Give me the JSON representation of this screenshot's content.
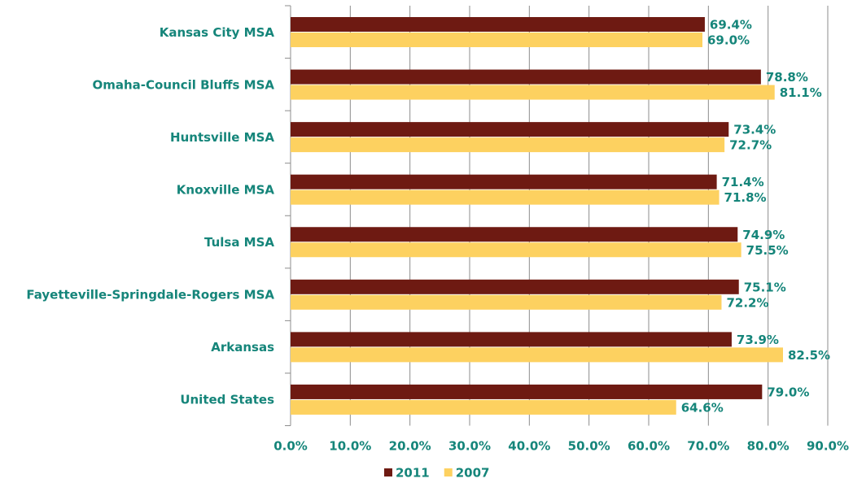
{
  "chart_data": {
    "type": "hbar",
    "categories": [
      "Kansas City MSA",
      "Omaha-Council Bluffs MSA",
      "Huntsville MSA",
      "Knoxville MSA",
      "Tulsa MSA",
      "Fayetteville-Springdale-Rogers MSA",
      "Arkansas",
      "United States"
    ],
    "series": [
      {
        "name": "2011",
        "color": "#6e1a12",
        "values": [
          69.4,
          78.8,
          73.4,
          71.4,
          74.9,
          75.1,
          73.9,
          79.0
        ],
        "value_labels": [
          "69.4%",
          "78.8%",
          "73.4%",
          "71.4%",
          "74.9%",
          "75.1%",
          "73.9%",
          "79.0%"
        ]
      },
      {
        "name": "2007",
        "color": "#fdd160",
        "values": [
          69.0,
          81.1,
          72.7,
          71.8,
          75.5,
          72.2,
          82.5,
          64.6
        ],
        "value_labels": [
          "69.0%",
          "81.1%",
          "72.7%",
          "71.8%",
          "75.5%",
          "72.2%",
          "82.5%",
          "64.6%"
        ]
      }
    ],
    "xlim": [
      0,
      90
    ],
    "xticks": [
      {
        "value": 0,
        "label": "0.0%"
      },
      {
        "value": 10,
        "label": "10.0%"
      },
      {
        "value": 20,
        "label": "20.0%"
      },
      {
        "value": 30,
        "label": "30.0%"
      },
      {
        "value": 40,
        "label": "40.0%"
      },
      {
        "value": 50,
        "label": "50.0%"
      },
      {
        "value": 60,
        "label": "60.0%"
      },
      {
        "value": 70,
        "label": "70.0%"
      },
      {
        "value": 80,
        "label": "80.0%"
      },
      {
        "value": 90,
        "label": "90.0%"
      }
    ],
    "grid": true,
    "legend": "bottom"
  }
}
